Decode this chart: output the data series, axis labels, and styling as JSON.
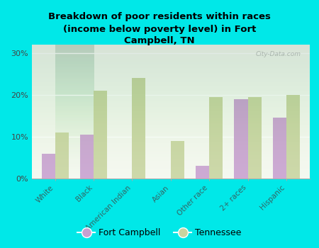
{
  "title": "Breakdown of poor residents within races\n(income below poverty level) in Fort\nCampbell, TN",
  "categories": [
    "White",
    "Black",
    "American Indian",
    "Asian",
    "Other race",
    "2+ races",
    "Hispanic"
  ],
  "fort_campbell": [
    6.0,
    10.5,
    0.0,
    0.0,
    3.0,
    19.0,
    14.5
  ],
  "tennessee": [
    11.0,
    21.0,
    24.0,
    9.0,
    19.5,
    19.5,
    20.0
  ],
  "fort_campbell_color": "#c8a0d0",
  "tennessee_color": "#c8d4a0",
  "background_color": "#00e8e8",
  "plot_bg_top": "#f5f8f0",
  "plot_bg_bottom": "#d8e8c8",
  "bar_width": 0.35,
  "ylim": [
    0,
    32
  ],
  "yticks": [
    0,
    10,
    20,
    30
  ],
  "ytick_labels": [
    "0%",
    "10%",
    "20%",
    "30%"
  ],
  "legend_fort_campbell": "Fort Campbell",
  "legend_tennessee": "Tennessee",
  "watermark": "City-Data.com"
}
